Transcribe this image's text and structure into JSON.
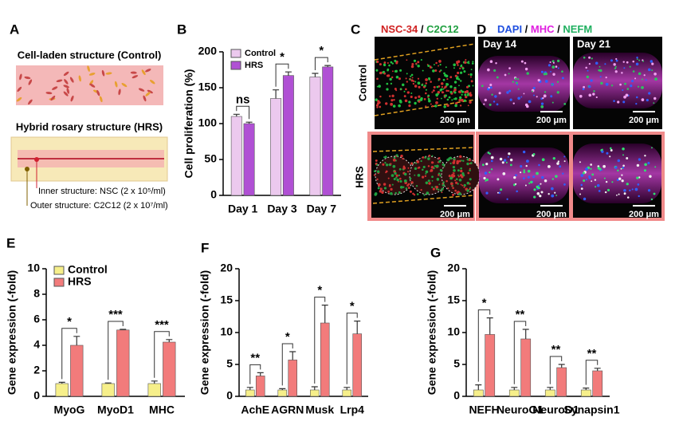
{
  "panels": {
    "a": {
      "label": "A",
      "control_title": "Cell-laden structure (Control)",
      "hrs_title": "Hybrid rosary structure (HRS)",
      "inner": "Inner structure: NSC (2 x 10⁵/ml)",
      "outer": "Outer structure: C2C12 (2 x 10⁷/ml)"
    },
    "c": {
      "label": "C",
      "stain1": "NSC-34",
      "sep": " / ",
      "stain2": "C2C12",
      "row1": "Control",
      "row2": "HRS",
      "scale": "200 μm"
    },
    "d": {
      "label": "D",
      "stain1": "DAPI",
      "sep1": " / ",
      "stain2": "MHC",
      "sep2": " / ",
      "stain3": "NEFM",
      "day1": "Day 14",
      "day2": "Day 21"
    }
  },
  "chart_data": [
    {
      "type": "bar",
      "label": "B",
      "ylabel": "Cell proliferation (%)",
      "categories": [
        "Day 1",
        "Day 3",
        "Day 7"
      ],
      "series": [
        {
          "name": "Control",
          "color": "#ecc9ee",
          "values": [
            110,
            135,
            165
          ],
          "errors": [
            3,
            12,
            5
          ]
        },
        {
          "name": "HRS",
          "color": "#b050d4",
          "values": [
            100,
            167,
            179
          ],
          "errors": [
            2,
            5,
            2
          ]
        }
      ],
      "annotations": [
        "ns",
        "*",
        "*"
      ],
      "ylim": [
        0,
        200
      ],
      "yticks": [
        0,
        50,
        100,
        150,
        200
      ],
      "legend": "upper left"
    },
    {
      "type": "bar",
      "label": "E",
      "ylabel": "Gene expression (-fold)",
      "categories": [
        "MyoG",
        "MyoD1",
        "MHC"
      ],
      "series": [
        {
          "name": "Control",
          "color": "#f6ef8a",
          "values": [
            1,
            1,
            1
          ],
          "errors": [
            0.1,
            0.05,
            0.2
          ]
        },
        {
          "name": "HRS",
          "color": "#f27b7b",
          "values": [
            4.0,
            5.2,
            4.25
          ],
          "errors": [
            0.7,
            0.05,
            0.2
          ]
        }
      ],
      "annotations": [
        "*",
        "***",
        "***"
      ],
      "ylim": [
        0,
        10
      ],
      "yticks": [
        0,
        2,
        4,
        6,
        8,
        10
      ],
      "legend": "upper left"
    },
    {
      "type": "bar",
      "label": "F",
      "ylabel": "Gene expression (-fold)",
      "categories": [
        "AchE",
        "AGRN",
        "Musk",
        "Lrp4"
      ],
      "series": [
        {
          "color": "#f6ef8a",
          "values": [
            1,
            1,
            1,
            1
          ],
          "errors": [
            0.4,
            0.2,
            0.5,
            0.4
          ]
        },
        {
          "color": "#f27b7b",
          "values": [
            3.2,
            5.7,
            11.5,
            9.8
          ],
          "errors": [
            0.5,
            1.3,
            2.8,
            2.0
          ]
        }
      ],
      "annotations": [
        "**",
        "*",
        "*",
        "*"
      ],
      "ylim": [
        0,
        20
      ],
      "yticks": [
        0,
        5,
        10,
        15,
        20
      ]
    },
    {
      "type": "bar",
      "label": "G",
      "ylabel": "Gene expression (-fold)",
      "categories": [
        "NEFH",
        "NeuroG1",
        "NeuroD1",
        "Synapsin1"
      ],
      "series": [
        {
          "color": "#f6ef8a",
          "values": [
            1,
            1,
            1,
            1
          ],
          "errors": [
            0.8,
            0.4,
            0.4,
            0.3
          ]
        },
        {
          "color": "#f27b7b",
          "values": [
            9.7,
            9.0,
            4.5,
            4.0
          ],
          "errors": [
            2.6,
            1.5,
            0.5,
            0.4
          ]
        }
      ],
      "annotations": [
        "*",
        "**",
        "**",
        "**"
      ],
      "ylim": [
        0,
        20
      ],
      "yticks": [
        0,
        5,
        10,
        15,
        20
      ]
    }
  ]
}
